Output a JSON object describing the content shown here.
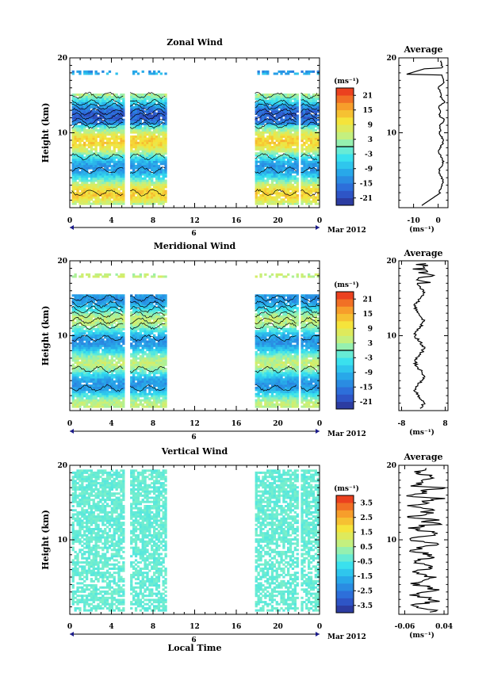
{
  "chart_data": [
    {
      "type": "heatmap",
      "title": "Zonal Wind",
      "ylabel": "Height (km)",
      "xticks": [
        "0",
        "4",
        "8",
        "12",
        "16",
        "20",
        "0"
      ],
      "yticks": [
        "10",
        "20"
      ],
      "ylim": [
        0,
        20
      ],
      "xlim": [
        0,
        24
      ],
      "date_marker": "6",
      "date_label": "Mar 2012",
      "observation_blocks_hours": [
        [
          0.2,
          5.2
        ],
        [
          5.8,
          9.2
        ],
        [
          17.8,
          21.8
        ],
        [
          22.2,
          23.8
        ]
      ],
      "colorbar": {
        "unit": "(ms⁻¹)",
        "ticks": [
          "21",
          "15",
          "9",
          "3",
          "-3",
          "-9",
          "-15",
          "-21"
        ],
        "range": [
          -24,
          24
        ]
      },
      "profile": {
        "title": "Average",
        "xticks": [
          "-10",
          "0"
        ],
        "xlim": [
          -16,
          4
        ],
        "xunit": "(ms⁻¹)",
        "yticks": [
          "10",
          "20"
        ],
        "ylim": [
          0,
          20
        ]
      }
    },
    {
      "type": "heatmap",
      "title": "Meridional Wind",
      "ylabel": "Height (km)",
      "xticks": [
        "0",
        "4",
        "8",
        "12",
        "16",
        "20",
        "0"
      ],
      "yticks": [
        "10",
        "20"
      ],
      "ylim": [
        0,
        20
      ],
      "xlim": [
        0,
        24
      ],
      "date_marker": "6",
      "date_label": "Mar 2012",
      "observation_blocks_hours": [
        [
          0.2,
          5.2
        ],
        [
          5.8,
          9.2
        ],
        [
          17.8,
          21.8
        ],
        [
          22.2,
          23.8
        ]
      ],
      "colorbar": {
        "unit": "(ms⁻¹)",
        "ticks": [
          "21",
          "15",
          "9",
          "3",
          "-3",
          "-9",
          "-15",
          "-21"
        ],
        "range": [
          -24,
          24
        ]
      },
      "profile": {
        "title": "Average",
        "xticks": [
          "-8",
          "8"
        ],
        "xlim": [
          -9,
          9
        ],
        "xunit": "(ms⁻¹)",
        "yticks": [
          "10",
          "20"
        ],
        "ylim": [
          0,
          20
        ]
      }
    },
    {
      "type": "heatmap",
      "title": "Vertical Wind",
      "ylabel": "Height (km)",
      "xlabel": "Local Time",
      "xticks": [
        "0",
        "4",
        "8",
        "12",
        "16",
        "20",
        "0"
      ],
      "yticks": [
        "10",
        "20"
      ],
      "ylim": [
        0,
        20
      ],
      "xlim": [
        0,
        24
      ],
      "date_marker": "6",
      "date_label": "Mar 2012",
      "observation_blocks_hours": [
        [
          0.2,
          5.2
        ],
        [
          5.8,
          9.2
        ],
        [
          17.8,
          21.8
        ],
        [
          22.2,
          23.8
        ]
      ],
      "colorbar": {
        "unit": "(ms⁻¹)",
        "ticks": [
          "3.5",
          "2.5",
          "1.5",
          "0.5",
          "-0.5",
          "-1.5",
          "-2.5",
          "-3.5"
        ],
        "range": [
          -4,
          4
        ]
      },
      "profile": {
        "title": "Average",
        "xticks": [
          "-0.06",
          "0.04"
        ],
        "xlim": [
          -0.075,
          0.05
        ],
        "xunit": "(ms⁻¹)",
        "yticks": [
          "10",
          "20"
        ],
        "ylim": [
          0,
          20
        ]
      }
    }
  ]
}
